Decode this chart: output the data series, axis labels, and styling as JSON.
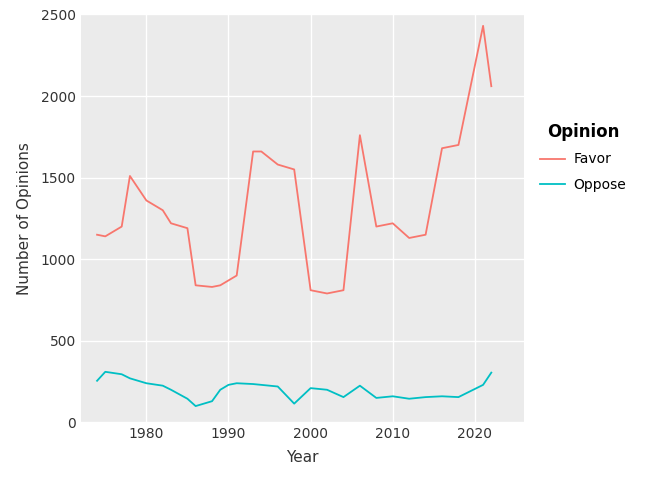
{
  "favor_years": [
    1974,
    1975,
    1977,
    1978,
    1980,
    1982,
    1983,
    1985,
    1986,
    1988,
    1989,
    1990,
    1991,
    1993,
    1994,
    1996,
    1998,
    2000,
    2002,
    2004,
    2006,
    2008,
    2010,
    2012,
    2014,
    2016,
    2018,
    2021,
    2022
  ],
  "favor_values": [
    1150,
    1140,
    1200,
    1510,
    1360,
    1300,
    1220,
    1190,
    840,
    830,
    840,
    870,
    900,
    1660,
    1660,
    1580,
    1550,
    810,
    790,
    810,
    1760,
    1200,
    1220,
    1130,
    1150,
    1680,
    1700,
    2430,
    2060
  ],
  "oppose_years": [
    1974,
    1975,
    1977,
    1978,
    1980,
    1982,
    1983,
    1985,
    1986,
    1988,
    1989,
    1990,
    1991,
    1993,
    1994,
    1996,
    1998,
    2000,
    2002,
    2004,
    2006,
    2008,
    2010,
    2012,
    2014,
    2016,
    2018,
    2021,
    2022
  ],
  "oppose_values": [
    255,
    310,
    295,
    270,
    240,
    225,
    200,
    145,
    100,
    130,
    200,
    230,
    240,
    235,
    230,
    220,
    115,
    210,
    200,
    155,
    225,
    150,
    160,
    145,
    155,
    160,
    155,
    230,
    305
  ],
  "favor_color": "#F8766D",
  "oppose_color": "#00BFC4",
  "xlabel": "Year",
  "ylabel": "Number of Opinions",
  "xlim": [
    1972,
    2026
  ],
  "ylim": [
    0,
    2500
  ],
  "yticks": [
    0,
    500,
    1000,
    1500,
    2000,
    2500
  ],
  "xticks": [
    1980,
    1990,
    2000,
    2010,
    2020
  ],
  "legend_title": "Opinion",
  "legend_labels": [
    "Favor",
    "Oppose"
  ],
  "panel_background": "#ebebeb",
  "fig_background": "#ffffff",
  "grid_color": "#ffffff",
  "line_width": 1.3
}
